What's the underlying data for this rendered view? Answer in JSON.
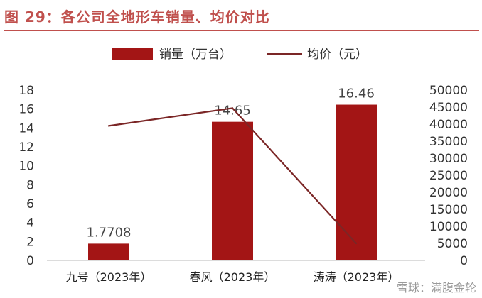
{
  "figure_title": "图 29：各公司全地形车销量、均价对比",
  "watermark": "雪球：满腹金轮",
  "colors": {
    "bar": "#a31515",
    "line": "#7b2626",
    "title": "#c0504d"
  },
  "chart_data": {
    "type": "bar+line",
    "title": "",
    "categories": [
      "九号（2023年）",
      "春风（2023年）",
      "涛涛（2023年）"
    ],
    "series": [
      {
        "name": "销量（万台）",
        "type": "bar",
        "axis": "left",
        "values": [
          1.7708,
          14.65,
          16.46
        ],
        "data_labels": [
          "1.7708",
          "14.65",
          "16.46"
        ]
      },
      {
        "name": "均价（元）",
        "type": "line",
        "axis": "right",
        "values": [
          39500,
          44700,
          5000
        ]
      }
    ],
    "y_left": {
      "min": 0,
      "max": 18,
      "step": 2,
      "ticks": [
        "0",
        "2",
        "4",
        "6",
        "8",
        "10",
        "12",
        "14",
        "16",
        "18"
      ]
    },
    "y_right": {
      "min": 0,
      "max": 50000,
      "step": 5000,
      "ticks": [
        "0",
        "5000",
        "10000",
        "15000",
        "20000",
        "25000",
        "30000",
        "35000",
        "40000",
        "45000",
        "50000"
      ]
    },
    "legend_position": "top-center",
    "grid": false
  }
}
